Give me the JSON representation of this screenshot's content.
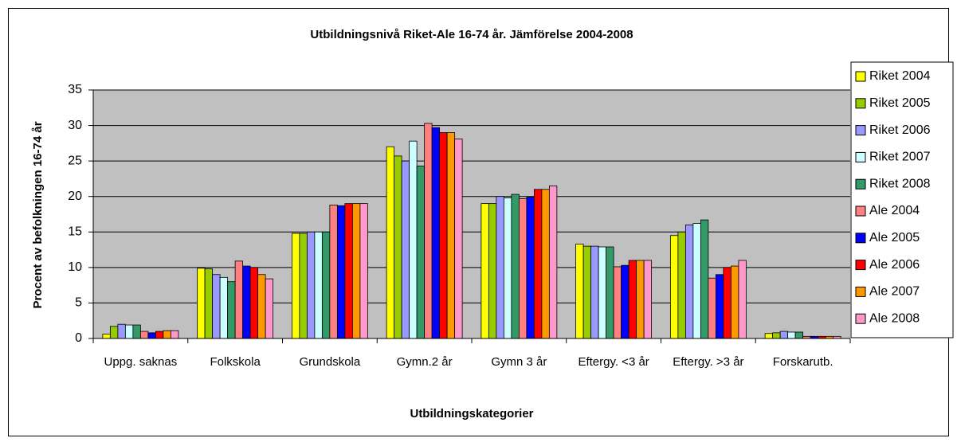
{
  "chart_data": {
    "type": "bar",
    "title": "Utbildningsnivå Riket-Ale 16-74 år. Jämförelse 2004-2008",
    "x_label": "Utbildningskategorier",
    "y_label": "Procent av befolkningen 16-74 år",
    "categories": [
      "Uppg. saknas",
      "Folkskola",
      "Grundskola",
      "Gymn.2 år",
      "Gymn 3 år",
      "Eftergy. <3 år",
      "Eftergy. >3 år",
      "Forskarutb."
    ],
    "series": [
      {
        "name": "Riket 2004",
        "color": "#ffff00",
        "values": [
          0.6,
          9.9,
          14.8,
          27.0,
          19.0,
          13.3,
          14.5,
          0.7
        ]
      },
      {
        "name": "Riket 2005",
        "color": "#99cc00",
        "values": [
          1.7,
          9.8,
          14.8,
          25.7,
          19.0,
          13.0,
          15.0,
          0.8
        ]
      },
      {
        "name": "Riket 2006",
        "color": "#9999ff",
        "values": [
          2.0,
          9.0,
          15.0,
          25.0,
          20.0,
          13.0,
          16.0,
          1.0
        ]
      },
      {
        "name": "Riket 2007",
        "color": "#ccffff",
        "values": [
          1.9,
          8.6,
          15.0,
          27.8,
          19.8,
          12.9,
          16.2,
          0.9
        ]
      },
      {
        "name": "Riket 2008",
        "color": "#339966",
        "values": [
          1.9,
          8.0,
          15.0,
          24.3,
          20.3,
          12.9,
          16.7,
          0.9
        ]
      },
      {
        "name": "Ale 2004",
        "color": "#ff8080",
        "values": [
          1.0,
          10.9,
          18.8,
          30.3,
          19.7,
          10.1,
          8.5,
          0.3
        ]
      },
      {
        "name": "Ale 2005",
        "color": "#0000ff",
        "values": [
          0.8,
          10.2,
          18.7,
          29.7,
          19.9,
          10.3,
          9.0,
          0.3
        ]
      },
      {
        "name": "Ale 2006",
        "color": "#ff0000",
        "values": [
          1.0,
          10.0,
          19.0,
          29.0,
          21.0,
          11.0,
          10.0,
          0.3
        ]
      },
      {
        "name": "Ale 2007",
        "color": "#ff9900",
        "values": [
          1.1,
          9.0,
          19.0,
          29.0,
          21.0,
          11.0,
          10.2,
          0.3
        ]
      },
      {
        "name": "Ale 2008",
        "color": "#ff99cc",
        "values": [
          1.1,
          8.4,
          19.0,
          28.1,
          21.5,
          11.0,
          11.0,
          0.3
        ]
      }
    ],
    "ylim": [
      0,
      35
    ],
    "yticks": [
      0,
      5,
      10,
      15,
      20,
      25,
      30,
      35
    ],
    "grid": true,
    "legend": "right"
  }
}
